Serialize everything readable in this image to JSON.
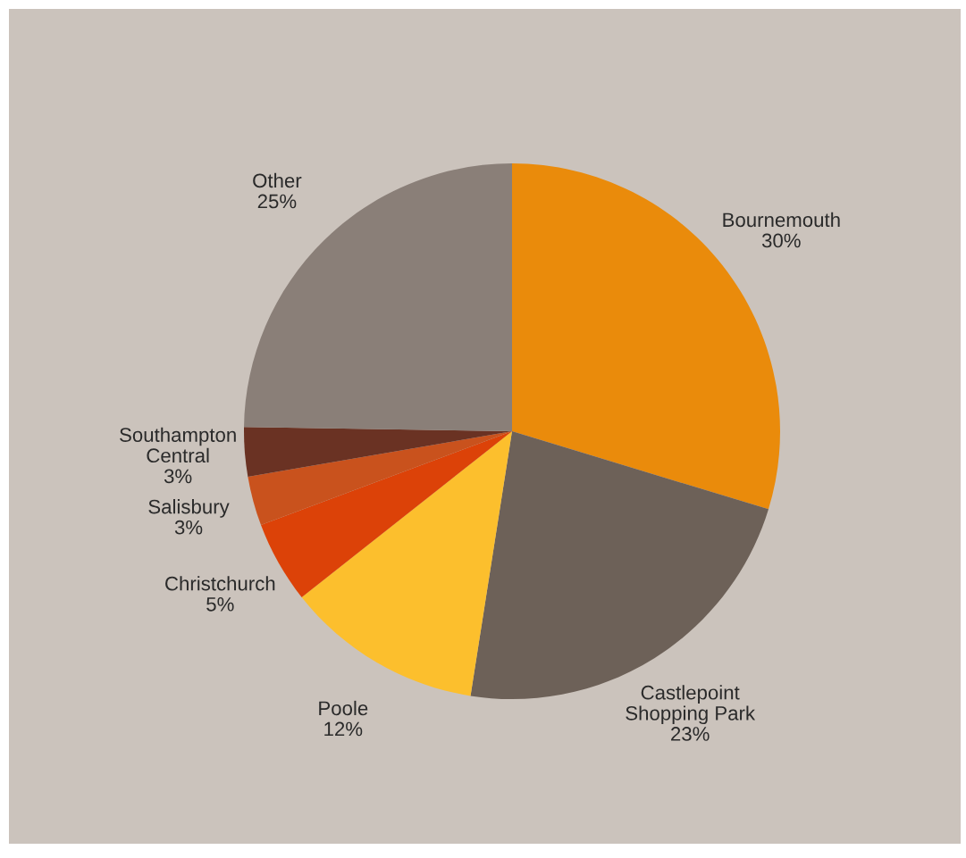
{
  "chart_data": {
    "type": "pie",
    "categories": [
      "Bournemouth",
      "Castlepoint\nShopping Park",
      "Poole",
      "Christchurch",
      "Salisbury",
      "Southampton\nCentral",
      "Other"
    ],
    "values": [
      30,
      23,
      12,
      5,
      3,
      3,
      25
    ],
    "value_labels": [
      "30%",
      "23%",
      "12%",
      "5%",
      "3%",
      "3%",
      "25%"
    ],
    "colors": [
      "#ea8b0b",
      "#6d6158",
      "#fcbf2d",
      "#dc4208",
      "#c9521d",
      "#6a3223",
      "#8a7f78"
    ]
  }
}
